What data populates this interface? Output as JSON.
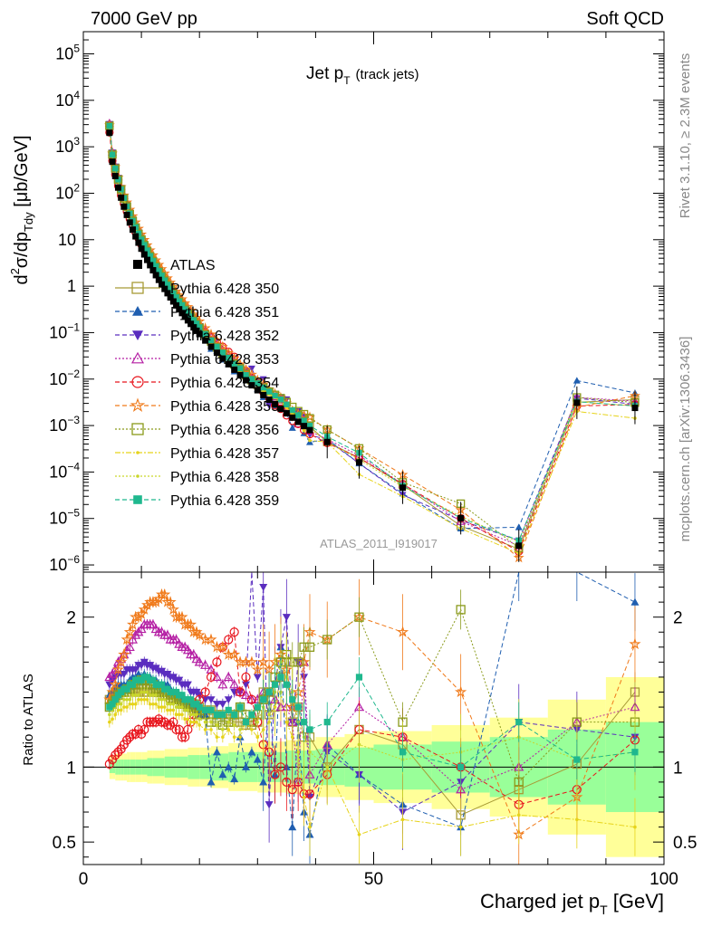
{
  "header": {
    "left": "7000 GeV pp",
    "right": "Soft QCD"
  },
  "side_labels": {
    "rivet": "Rivet 3.1.10, ≥ 2.3M events",
    "mcplots": "mcplots.cern.ch [arXiv:1306.3436]"
  },
  "colors": {
    "data": "#000000",
    "band_inner": "#99ff99",
    "band_outer": "#ffff99",
    "series": [
      "#a89b36",
      "#1f5eb0",
      "#5a2dbf",
      "#b51fa4",
      "#e8141c",
      "#f07a1a",
      "#8a9a1a",
      "#e6d31a",
      "#c9d62a",
      "#1fb88e"
    ]
  },
  "chart_data": [
    {
      "type": "scatter",
      "title": "Jet p",
      "title_sub": "T",
      "title_note": "(track jets)",
      "ylabel": "d²σ/dp_Tdy [μb/GeV]",
      "ylabel_parts": {
        "a": "d",
        "b": "2",
        "c": "σ/dp",
        "d": "Tdy",
        "e": " [μb/GeV]"
      },
      "yscale": "log",
      "ylim": [
        7e-07,
        300000.0
      ],
      "xlim": [
        0,
        100
      ],
      "ytick_labels": [
        {
          "v": 100000.0,
          "base": "10",
          "exp": "5"
        },
        {
          "v": 10000.0,
          "base": "10",
          "exp": "4"
        },
        {
          "v": 1000.0,
          "base": "10",
          "exp": "3"
        },
        {
          "v": 100.0,
          "base": "10",
          "exp": "2"
        },
        {
          "v": 10,
          "base": "10",
          "exp": ""
        },
        {
          "v": 1,
          "base": "1",
          "exp": ""
        },
        {
          "v": 0.1,
          "base": "10",
          "exp": "−1"
        },
        {
          "v": 0.01,
          "base": "10",
          "exp": "−2"
        },
        {
          "v": 0.001,
          "base": "10",
          "exp": "−3"
        },
        {
          "v": 0.0001,
          "base": "10",
          "exp": "−4"
        },
        {
          "v": 1e-05,
          "base": "10",
          "exp": "−5"
        },
        {
          "v": 1e-06,
          "base": "10",
          "exp": "−6"
        }
      ],
      "analysis_label": "ATLAS_2011_I919017",
      "legend_position": "middle-left",
      "data_name": "ATLAS",
      "x": [
        4.5,
        5,
        5.5,
        6,
        6.5,
        7,
        7.5,
        8,
        8.5,
        9,
        9.5,
        10,
        10.5,
        11,
        11.5,
        12,
        12.5,
        13,
        13.5,
        14,
        14.5,
        15,
        15.5,
        16,
        16.5,
        17,
        17.5,
        18,
        18.5,
        19,
        19.5,
        20,
        21,
        22,
        23,
        24,
        25,
        26,
        27,
        28,
        29,
        30,
        31,
        32,
        33,
        34,
        35,
        36,
        37,
        38,
        39,
        42,
        47.5,
        55,
        65,
        75,
        85,
        95
      ],
      "pt_fit": {
        "amplitude": 2000,
        "slope": 1.7,
        "x0": 4.5
      },
      "tail_values": [
        {
          "x": 85,
          "y": 0.0031
        },
        {
          "x": 95,
          "y": 0.0024
        }
      ],
      "series": [
        {
          "name": "Pythia 6.428 350",
          "marker": "square-open",
          "dash": "solid"
        },
        {
          "name": "Pythia 6.428 351",
          "marker": "triangle-up",
          "dash": "dashed"
        },
        {
          "name": "Pythia 6.428 352",
          "marker": "triangle-down",
          "dash": "dashed"
        },
        {
          "name": "Pythia 6.428 353",
          "marker": "triangle-up-open",
          "dash": "dotted"
        },
        {
          "name": "Pythia 6.428 354",
          "marker": "circle-open",
          "dash": "dashed"
        },
        {
          "name": "Pythia 6.428 355",
          "marker": "star-open",
          "dash": "dashed"
        },
        {
          "name": "Pythia 6.428 356",
          "marker": "square-open",
          "dash": "dotted"
        },
        {
          "name": "Pythia 6.428 357",
          "marker": "dot",
          "dash": "dashdot"
        },
        {
          "name": "Pythia 6.428 358",
          "marker": "dot",
          "dash": "dotted"
        },
        {
          "name": "Pythia 6.428 359",
          "marker": "square",
          "dash": "dashed"
        }
      ]
    },
    {
      "type": "scatter",
      "ylabel": "Ratio to ATLAS",
      "xlabel": "Charged jet p",
      "xlabel_sub": "T",
      "xlabel_unit": " [GeV]",
      "ylim": [
        0.35,
        2.3
      ],
      "xlim": [
        0,
        100
      ],
      "xtick_labels": [
        "0",
        "50",
        "100"
      ],
      "ytick_labels": [
        "0.5",
        "1",
        "2"
      ],
      "ytick_values": [
        0.5,
        1,
        2
      ],
      "band_edges": [
        4.5,
        5,
        5.5,
        6,
        6.5,
        7,
        7.5,
        8,
        9,
        10,
        11,
        12,
        14,
        16,
        18,
        20,
        22,
        25,
        30,
        35,
        40,
        45,
        50,
        60,
        70,
        80,
        90,
        100
      ],
      "band_inner_halfwidth": [
        0.04,
        0.04,
        0.05,
        0.05,
        0.05,
        0.05,
        0.05,
        0.05,
        0.05,
        0.05,
        0.06,
        0.06,
        0.07,
        0.07,
        0.08,
        0.08,
        0.09,
        0.1,
        0.1,
        0.11,
        0.12,
        0.13,
        0.15,
        0.17,
        0.2,
        0.25,
        0.3
      ],
      "band_outer_halfwidth": [
        0.08,
        0.08,
        0.09,
        0.09,
        0.09,
        0.09,
        0.1,
        0.1,
        0.1,
        0.1,
        0.11,
        0.11,
        0.12,
        0.12,
        0.13,
        0.13,
        0.14,
        0.16,
        0.17,
        0.18,
        0.2,
        0.22,
        0.24,
        0.28,
        0.33,
        0.45,
        0.6
      ],
      "ratio_x": [
        4.5,
        5,
        5.5,
        6,
        6.5,
        7,
        7.5,
        8,
        8.5,
        9,
        9.5,
        10,
        10.5,
        11,
        11.5,
        12,
        12.5,
        13,
        13.5,
        14,
        14.5,
        15,
        15.5,
        16,
        16.5,
        17,
        17.5,
        18,
        18.5,
        19,
        19.5,
        20,
        21,
        22,
        23,
        24,
        25,
        26,
        27,
        28,
        29,
        30,
        31,
        32,
        33,
        34,
        35,
        36,
        37,
        38,
        39,
        42,
        47.5,
        55,
        65,
        75,
        85,
        95
      ],
      "ratio_series": [
        [
          1.45,
          1.48,
          1.5,
          1.52,
          1.52,
          1.5,
          1.5,
          1.52,
          1.52,
          1.5,
          1.5,
          1.52,
          1.5,
          1.5,
          1.52,
          1.5,
          1.5,
          1.5,
          1.5,
          1.48,
          1.48,
          1.46,
          1.46,
          1.45,
          1.45,
          1.44,
          1.44,
          1.43,
          1.43,
          1.42,
          1.42,
          1.4,
          1.38,
          1.38,
          1.35,
          1.35,
          1.32,
          1.3,
          1.3,
          1.28,
          1.28,
          1.3,
          1.5,
          1.35,
          1.4,
          1.6,
          1.7,
          1.3,
          1.4,
          1.2,
          1.2,
          1.0,
          1.25,
          1.15,
          0.68,
          0.85,
          1.02,
          1.5
        ],
        [
          1.48,
          1.5,
          1.52,
          1.55,
          1.55,
          1.55,
          1.55,
          1.58,
          1.6,
          1.6,
          1.62,
          1.6,
          1.62,
          1.6,
          1.6,
          1.58,
          1.58,
          1.55,
          1.55,
          1.55,
          1.55,
          1.52,
          1.5,
          1.5,
          1.48,
          1.45,
          1.45,
          1.42,
          1.4,
          1.4,
          1.38,
          1.35,
          1.35,
          0.9,
          1.1,
          0.95,
          1.0,
          0.92,
          1.2,
          1.0,
          1.1,
          1.05,
          0.9,
          1.5,
          0.95,
          1.8,
          1.0,
          0.6,
          1.3,
          0.7,
          0.55,
          1.15,
          0.95,
          0.75,
          0.6,
          2.5,
          3.0,
          2.1
        ],
        [
          1.55,
          1.58,
          1.6,
          1.62,
          1.62,
          1.62,
          1.65,
          1.65,
          1.65,
          1.65,
          1.68,
          1.68,
          1.7,
          1.68,
          1.68,
          1.66,
          1.66,
          1.64,
          1.64,
          1.62,
          1.62,
          1.6,
          1.6,
          1.58,
          1.58,
          1.55,
          1.55,
          1.55,
          1.5,
          1.5,
          1.5,
          1.48,
          1.45,
          1.45,
          1.42,
          1.42,
          1.45,
          1.5,
          1.5,
          1.55,
          2.3,
          1.6,
          2.2,
          0.75,
          1.55,
          1.8,
          2.0,
          1.3,
          1.7,
          1.6,
          0.8,
          1.1,
          0.95,
          0.7,
          0.9,
          1.3,
          1.25,
          1.2
        ],
        [
          1.6,
          1.62,
          1.65,
          1.7,
          1.72,
          1.75,
          1.78,
          1.8,
          1.85,
          1.88,
          1.9,
          1.92,
          1.95,
          1.95,
          1.95,
          1.95,
          1.92,
          1.9,
          1.9,
          1.88,
          1.88,
          1.85,
          1.85,
          1.85,
          1.82,
          1.8,
          1.8,
          1.78,
          1.75,
          1.75,
          1.72,
          1.7,
          1.68,
          1.65,
          1.6,
          1.55,
          1.6,
          1.55,
          1.5,
          1.48,
          1.45,
          1.45,
          1.5,
          1.5,
          1.45,
          1.4,
          1.4,
          1.3,
          0.9,
          1.7,
          0.95,
          1.15,
          1.4,
          1.2,
          0.85,
          1.0,
          1.3,
          1.4
        ],
        [
          1.02,
          1.05,
          1.08,
          1.1,
          1.12,
          1.15,
          1.18,
          1.2,
          1.22,
          1.22,
          1.25,
          1.22,
          1.25,
          1.3,
          1.3,
          1.3,
          1.3,
          1.32,
          1.3,
          1.3,
          1.28,
          1.28,
          1.3,
          1.25,
          1.25,
          1.2,
          1.2,
          1.25,
          1.3,
          1.35,
          1.4,
          1.45,
          1.5,
          1.6,
          1.7,
          1.8,
          1.85,
          1.9,
          1.5,
          1.6,
          1.45,
          1.3,
          1.15,
          1.1,
          0.95,
          1.0,
          0.9,
          0.85,
          0.9,
          0.82,
          0.82,
          0.95,
          1.25,
          1.2,
          1.0,
          0.75,
          0.85,
          1.18
        ],
        [
          1.45,
          1.5,
          1.55,
          1.65,
          1.7,
          1.75,
          1.85,
          1.9,
          1.95,
          2.0,
          2.0,
          2.02,
          2.05,
          2.08,
          2.1,
          2.1,
          2.1,
          2.12,
          2.15,
          2.15,
          2.1,
          2.1,
          2.05,
          2.0,
          2.0,
          2.0,
          1.95,
          1.95,
          1.95,
          1.9,
          1.9,
          1.88,
          1.85,
          1.85,
          1.8,
          1.8,
          1.75,
          1.75,
          1.7,
          1.7,
          1.7,
          1.65,
          1.7,
          1.65,
          1.7,
          1.75,
          1.65,
          1.4,
          1.5,
          1.7,
          1.9,
          1.85,
          2.0,
          1.9,
          1.5,
          0.55,
          0.8,
          1.82
        ],
        [
          1.4,
          1.42,
          1.45,
          1.48,
          1.5,
          1.5,
          1.52,
          1.52,
          1.55,
          1.55,
          1.55,
          1.58,
          1.58,
          1.55,
          1.55,
          1.55,
          1.52,
          1.5,
          1.5,
          1.5,
          1.48,
          1.48,
          1.45,
          1.45,
          1.45,
          1.42,
          1.42,
          1.4,
          1.4,
          1.38,
          1.38,
          1.35,
          1.35,
          1.3,
          1.3,
          1.28,
          1.3,
          1.35,
          1.4,
          1.35,
          1.3,
          1.35,
          1.45,
          1.5,
          1.6,
          1.7,
          1.75,
          1.7,
          1.7,
          1.8,
          1.8,
          1.85,
          2.0,
          1.3,
          2.05,
          0.9,
          1.3,
          1.3
        ],
        [
          1.3,
          1.32,
          1.35,
          1.38,
          1.38,
          1.4,
          1.4,
          1.42,
          1.42,
          1.42,
          1.45,
          1.45,
          1.45,
          1.45,
          1.42,
          1.42,
          1.42,
          1.4,
          1.4,
          1.4,
          1.38,
          1.38,
          1.38,
          1.35,
          1.35,
          1.35,
          1.32,
          1.32,
          1.3,
          1.3,
          1.3,
          1.28,
          1.25,
          1.25,
          1.2,
          1.2,
          1.25,
          1.2,
          1.2,
          1.3,
          1.25,
          1.2,
          1.25,
          1.3,
          1.4,
          1.5,
          1.3,
          1.2,
          1.1,
          0.8,
          0.6,
          1.0,
          0.55,
          0.65,
          0.6,
          0.68,
          0.65,
          0.6
        ],
        [
          1.35,
          1.38,
          1.4,
          1.42,
          1.42,
          1.45,
          1.45,
          1.45,
          1.48,
          1.48,
          1.48,
          1.5,
          1.5,
          1.5,
          1.48,
          1.48,
          1.48,
          1.45,
          1.45,
          1.45,
          1.42,
          1.42,
          1.42,
          1.4,
          1.4,
          1.4,
          1.38,
          1.38,
          1.35,
          1.35,
          1.35,
          1.32,
          1.3,
          1.3,
          1.28,
          1.25,
          1.3,
          1.28,
          1.25,
          1.3,
          1.35,
          1.3,
          1.4,
          1.35,
          1.5,
          1.7,
          1.6,
          1.5,
          1.3,
          1.2,
          1.1,
          1.0,
          1.15,
          1.05,
          1.1,
          1.2,
          1.05,
          1.1
        ],
        [
          1.4,
          1.42,
          1.45,
          1.48,
          1.5,
          1.52,
          1.52,
          1.55,
          1.55,
          1.58,
          1.58,
          1.58,
          1.6,
          1.6,
          1.58,
          1.58,
          1.55,
          1.55,
          1.55,
          1.52,
          1.52,
          1.5,
          1.5,
          1.5,
          1.48,
          1.48,
          1.45,
          1.45,
          1.45,
          1.42,
          1.42,
          1.4,
          1.38,
          1.38,
          1.35,
          1.35,
          1.38,
          1.35,
          1.4,
          1.3,
          1.35,
          1.4,
          1.45,
          1.5,
          1.55,
          1.6,
          1.55,
          1.45,
          1.4,
          1.3,
          1.25,
          1.3,
          1.6,
          1.1,
          1.0,
          1.3,
          1.05,
          1.1
        ]
      ]
    }
  ]
}
